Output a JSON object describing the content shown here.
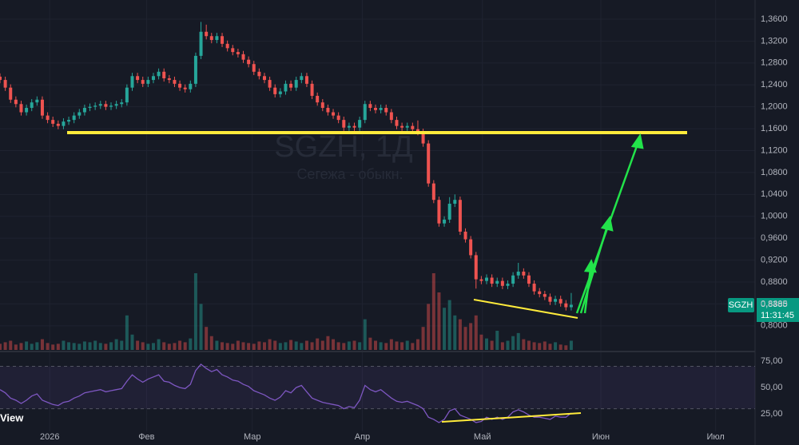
{
  "chart_data": [
    {
      "type": "candlestick",
      "title": "SGZH, 1Д",
      "subtitle": "Сегежа - обыкн.",
      "x": [
        0,
        1,
        2,
        3,
        4,
        5,
        6,
        7,
        8,
        9,
        10,
        11,
        12,
        13,
        14,
        15,
        16,
        17,
        18,
        19,
        20,
        21,
        22,
        23,
        24,
        25,
        26,
        27,
        28,
        29,
        30,
        31,
        32,
        33,
        34,
        35,
        36,
        37,
        38,
        39,
        40,
        41,
        42,
        43,
        44,
        45,
        46,
        47,
        48,
        49,
        50,
        51,
        52,
        53,
        54,
        55,
        56,
        57,
        58,
        59,
        60,
        61,
        62,
        63,
        64,
        65,
        66,
        67,
        68,
        69,
        70,
        71,
        72,
        73,
        74,
        75,
        76,
        77,
        78,
        79,
        80,
        81,
        82,
        83,
        84,
        85,
        86,
        87,
        88,
        89,
        90,
        91,
        92,
        93,
        94,
        95,
        96,
        97,
        98,
        99,
        100,
        101,
        102,
        103,
        104,
        105,
        106,
        107,
        108
      ],
      "open": [
        1.255,
        1.249,
        1.235,
        1.213,
        1.205,
        1.19,
        1.198,
        1.208,
        1.213,
        1.184,
        1.176,
        1.169,
        1.165,
        1.173,
        1.176,
        1.184,
        1.19,
        1.198,
        1.2,
        1.202,
        1.205,
        1.2,
        1.202,
        1.205,
        1.208,
        1.235,
        1.256,
        1.249,
        1.242,
        1.249,
        1.256,
        1.264,
        1.252,
        1.249,
        1.242,
        1.235,
        1.232,
        1.242,
        1.293,
        1.337,
        1.329,
        1.322,
        1.329,
        1.315,
        1.307,
        1.3,
        1.296,
        1.286,
        1.278,
        1.264,
        1.256,
        1.249,
        1.235,
        1.223,
        1.228,
        1.242,
        1.235,
        1.249,
        1.256,
        1.242,
        1.22,
        1.208,
        1.198,
        1.19,
        1.184,
        1.176,
        1.162,
        1.165,
        1.162,
        1.176,
        1.205,
        1.198,
        1.194,
        1.198,
        1.19,
        1.176,
        1.165,
        1.162,
        1.165,
        1.159,
        1.154,
        1.133,
        1.06,
        1.03,
        0.987,
        0.994,
        1.023,
        1.03,
        0.972,
        0.958,
        0.929,
        0.885,
        0.882,
        0.888,
        0.877,
        0.882,
        0.873,
        0.877,
        0.892,
        0.899,
        0.892,
        0.877,
        0.863,
        0.858,
        0.853,
        0.844,
        0.849,
        0.841,
        0.834
      ],
      "high": [
        1.261,
        1.255,
        1.241,
        1.219,
        1.211,
        1.204,
        1.214,
        1.219,
        1.219,
        1.19,
        1.182,
        1.175,
        1.179,
        1.182,
        1.19,
        1.196,
        1.204,
        1.206,
        1.208,
        1.211,
        1.211,
        1.208,
        1.211,
        1.214,
        1.241,
        1.262,
        1.262,
        1.255,
        1.255,
        1.262,
        1.27,
        1.27,
        1.258,
        1.255,
        1.248,
        1.241,
        1.248,
        1.299,
        1.355,
        1.35,
        1.335,
        1.335,
        1.335,
        1.321,
        1.313,
        1.306,
        1.302,
        1.292,
        1.284,
        1.27,
        1.262,
        1.255,
        1.241,
        1.234,
        1.248,
        1.248,
        1.255,
        1.262,
        1.262,
        1.248,
        1.226,
        1.214,
        1.204,
        1.196,
        1.19,
        1.182,
        1.171,
        1.171,
        1.182,
        1.211,
        1.211,
        1.204,
        1.204,
        1.204,
        1.196,
        1.182,
        1.171,
        1.171,
        1.171,
        1.175,
        1.16,
        1.139,
        1.066,
        1.036,
        1.0,
        1.035,
        1.04,
        1.036,
        0.978,
        0.964,
        0.935,
        0.891,
        0.894,
        0.894,
        0.888,
        0.888,
        0.883,
        0.898,
        0.915,
        0.905,
        0.898,
        0.883,
        0.869,
        0.864,
        0.859,
        0.855,
        0.855,
        0.847,
        0.86
      ],
      "low": [
        1.243,
        1.229,
        1.207,
        1.199,
        1.184,
        1.184,
        1.192,
        1.202,
        1.178,
        1.17,
        1.163,
        1.159,
        1.159,
        1.167,
        1.17,
        1.178,
        1.184,
        1.192,
        1.194,
        1.196,
        1.194,
        1.194,
        1.196,
        1.199,
        1.202,
        1.229,
        1.243,
        1.236,
        1.236,
        1.243,
        1.25,
        1.246,
        1.243,
        1.236,
        1.229,
        1.226,
        1.226,
        1.236,
        1.287,
        1.323,
        1.316,
        1.316,
        1.309,
        1.301,
        1.294,
        1.29,
        1.28,
        1.272,
        1.258,
        1.25,
        1.243,
        1.229,
        1.217,
        1.217,
        1.222,
        1.229,
        1.229,
        1.243,
        1.236,
        1.214,
        1.202,
        1.192,
        1.184,
        1.178,
        1.17,
        1.156,
        1.156,
        1.156,
        1.156,
        1.17,
        1.192,
        1.188,
        1.188,
        1.184,
        1.17,
        1.159,
        1.156,
        1.156,
        1.153,
        1.148,
        1.127,
        1.054,
        1.024,
        0.981,
        0.981,
        0.988,
        1.017,
        0.966,
        0.952,
        0.923,
        0.868,
        0.876,
        0.876,
        0.871,
        0.871,
        0.867,
        0.867,
        0.871,
        0.886,
        0.886,
        0.871,
        0.857,
        0.852,
        0.847,
        0.838,
        0.838,
        0.835,
        0.828,
        0.828
      ],
      "close": [
        1.249,
        1.235,
        1.213,
        1.205,
        1.19,
        1.198,
        1.208,
        1.213,
        1.184,
        1.176,
        1.169,
        1.165,
        1.173,
        1.176,
        1.184,
        1.19,
        1.198,
        1.2,
        1.202,
        1.205,
        1.2,
        1.202,
        1.205,
        1.208,
        1.235,
        1.256,
        1.249,
        1.242,
        1.249,
        1.256,
        1.264,
        1.252,
        1.249,
        1.242,
        1.235,
        1.232,
        1.242,
        1.293,
        1.337,
        1.329,
        1.322,
        1.329,
        1.315,
        1.307,
        1.3,
        1.296,
        1.286,
        1.278,
        1.264,
        1.256,
        1.249,
        1.235,
        1.223,
        1.228,
        1.242,
        1.235,
        1.249,
        1.256,
        1.242,
        1.22,
        1.208,
        1.198,
        1.19,
        1.184,
        1.176,
        1.162,
        1.165,
        1.162,
        1.176,
        1.205,
        1.198,
        1.194,
        1.198,
        1.19,
        1.176,
        1.165,
        1.162,
        1.165,
        1.159,
        1.154,
        1.133,
        1.06,
        1.03,
        0.987,
        0.994,
        1.023,
        1.03,
        0.972,
        0.958,
        0.929,
        0.885,
        0.882,
        0.888,
        0.877,
        0.882,
        0.873,
        0.877,
        0.892,
        0.899,
        0.892,
        0.877,
        0.863,
        0.858,
        0.853,
        0.844,
        0.849,
        0.841,
        0.834,
        0.8385
      ],
      "volume": [
        8,
        10,
        12,
        7,
        9,
        11,
        8,
        10,
        14,
        9,
        7,
        8,
        12,
        10,
        9,
        8,
        11,
        10,
        12,
        9,
        8,
        10,
        14,
        12,
        45,
        20,
        12,
        10,
        8,
        9,
        14,
        10,
        8,
        9,
        12,
        10,
        15,
        100,
        60,
        30,
        18,
        12,
        10,
        9,
        8,
        12,
        10,
        9,
        8,
        11,
        10,
        14,
        12,
        9,
        10,
        13,
        11,
        9,
        12,
        10,
        15,
        12,
        18,
        14,
        10,
        9,
        11,
        12,
        10,
        40,
        16,
        12,
        10,
        9,
        14,
        11,
        10,
        12,
        9,
        14,
        30,
        60,
        100,
        75,
        55,
        65,
        45,
        40,
        30,
        35,
        45,
        20,
        15,
        12,
        25,
        10,
        12,
        18,
        22,
        14,
        12,
        10,
        9,
        11,
        8,
        10,
        7,
        6,
        12
      ],
      "vlim": [
        0,
        100
      ],
      "xlim": [
        0,
        142
      ],
      "xticks": [
        {
          "value": 9.4,
          "label": "2026"
        },
        {
          "value": 27.7,
          "label": "Фев"
        },
        {
          "value": 47.7,
          "label": "Мар"
        },
        {
          "value": 68.5,
          "label": "Апр"
        },
        {
          "value": 91.2,
          "label": "Май"
        },
        {
          "value": 113.6,
          "label": "Июн"
        },
        {
          "value": 135.3,
          "label": "Июл"
        }
      ],
      "ylim": [
        0.756,
        1.395
      ],
      "yticks": [
        {
          "value": 0.8,
          "label": "0,8000"
        },
        {
          "value": 0.84,
          "label": "0,8400"
        },
        {
          "value": 0.88,
          "label": "0,8800"
        },
        {
          "value": 0.92,
          "label": "0,9200"
        },
        {
          "value": 0.96,
          "label": "0,9600"
        },
        {
          "value": 1.0,
          "label": "1,0000"
        },
        {
          "value": 1.04,
          "label": "1,0400"
        },
        {
          "value": 1.08,
          "label": "1,0800"
        },
        {
          "value": 1.12,
          "label": "1,1200"
        },
        {
          "value": 1.16,
          "label": "1,1600"
        },
        {
          "value": 1.2,
          "label": "1,2000"
        },
        {
          "value": 1.24,
          "label": "1,2400"
        },
        {
          "value": 1.28,
          "label": "1,2800"
        },
        {
          "value": 1.32,
          "label": "1,3200"
        },
        {
          "value": 1.36,
          "label": "1,3600"
        }
      ],
      "up_color": "#26a69a",
      "down_color": "#ef5350",
      "grid": true,
      "last_price": {
        "symbol": "SGZH",
        "value": 0.8385,
        "label": "0,8385",
        "countdown": "11:31:45"
      }
    },
    {
      "type": "line",
      "color": "#7e57c2",
      "values": [
        48,
        45,
        40,
        38,
        35,
        38,
        42,
        44,
        38,
        36,
        34,
        33,
        36,
        37,
        40,
        42,
        45,
        46,
        47,
        48,
        46,
        47,
        48,
        49,
        56,
        62,
        58,
        55,
        58,
        60,
        62,
        56,
        55,
        52,
        50,
        49,
        53,
        66,
        72,
        68,
        65,
        67,
        62,
        60,
        57,
        56,
        53,
        51,
        47,
        45,
        43,
        40,
        38,
        41,
        47,
        45,
        50,
        52,
        46,
        40,
        38,
        36,
        35,
        34,
        33,
        30,
        32,
        31,
        38,
        52,
        48,
        46,
        48,
        44,
        40,
        37,
        36,
        37,
        35,
        33,
        30,
        22,
        20,
        17,
        20,
        28,
        30,
        24,
        22,
        20,
        17,
        18,
        22,
        20,
        22,
        20,
        22,
        27,
        29,
        27,
        24,
        22,
        22,
        21,
        20,
        23,
        22,
        22,
        26
      ],
      "ylim": [
        8.6,
        83.2
      ],
      "yticks": [
        {
          "value": 75,
          "label": "75,00"
        },
        {
          "value": 50,
          "label": "50,00"
        },
        {
          "value": 25,
          "label": "25,00"
        }
      ],
      "bands": [
        30,
        70
      ]
    }
  ],
  "brand": "View"
}
